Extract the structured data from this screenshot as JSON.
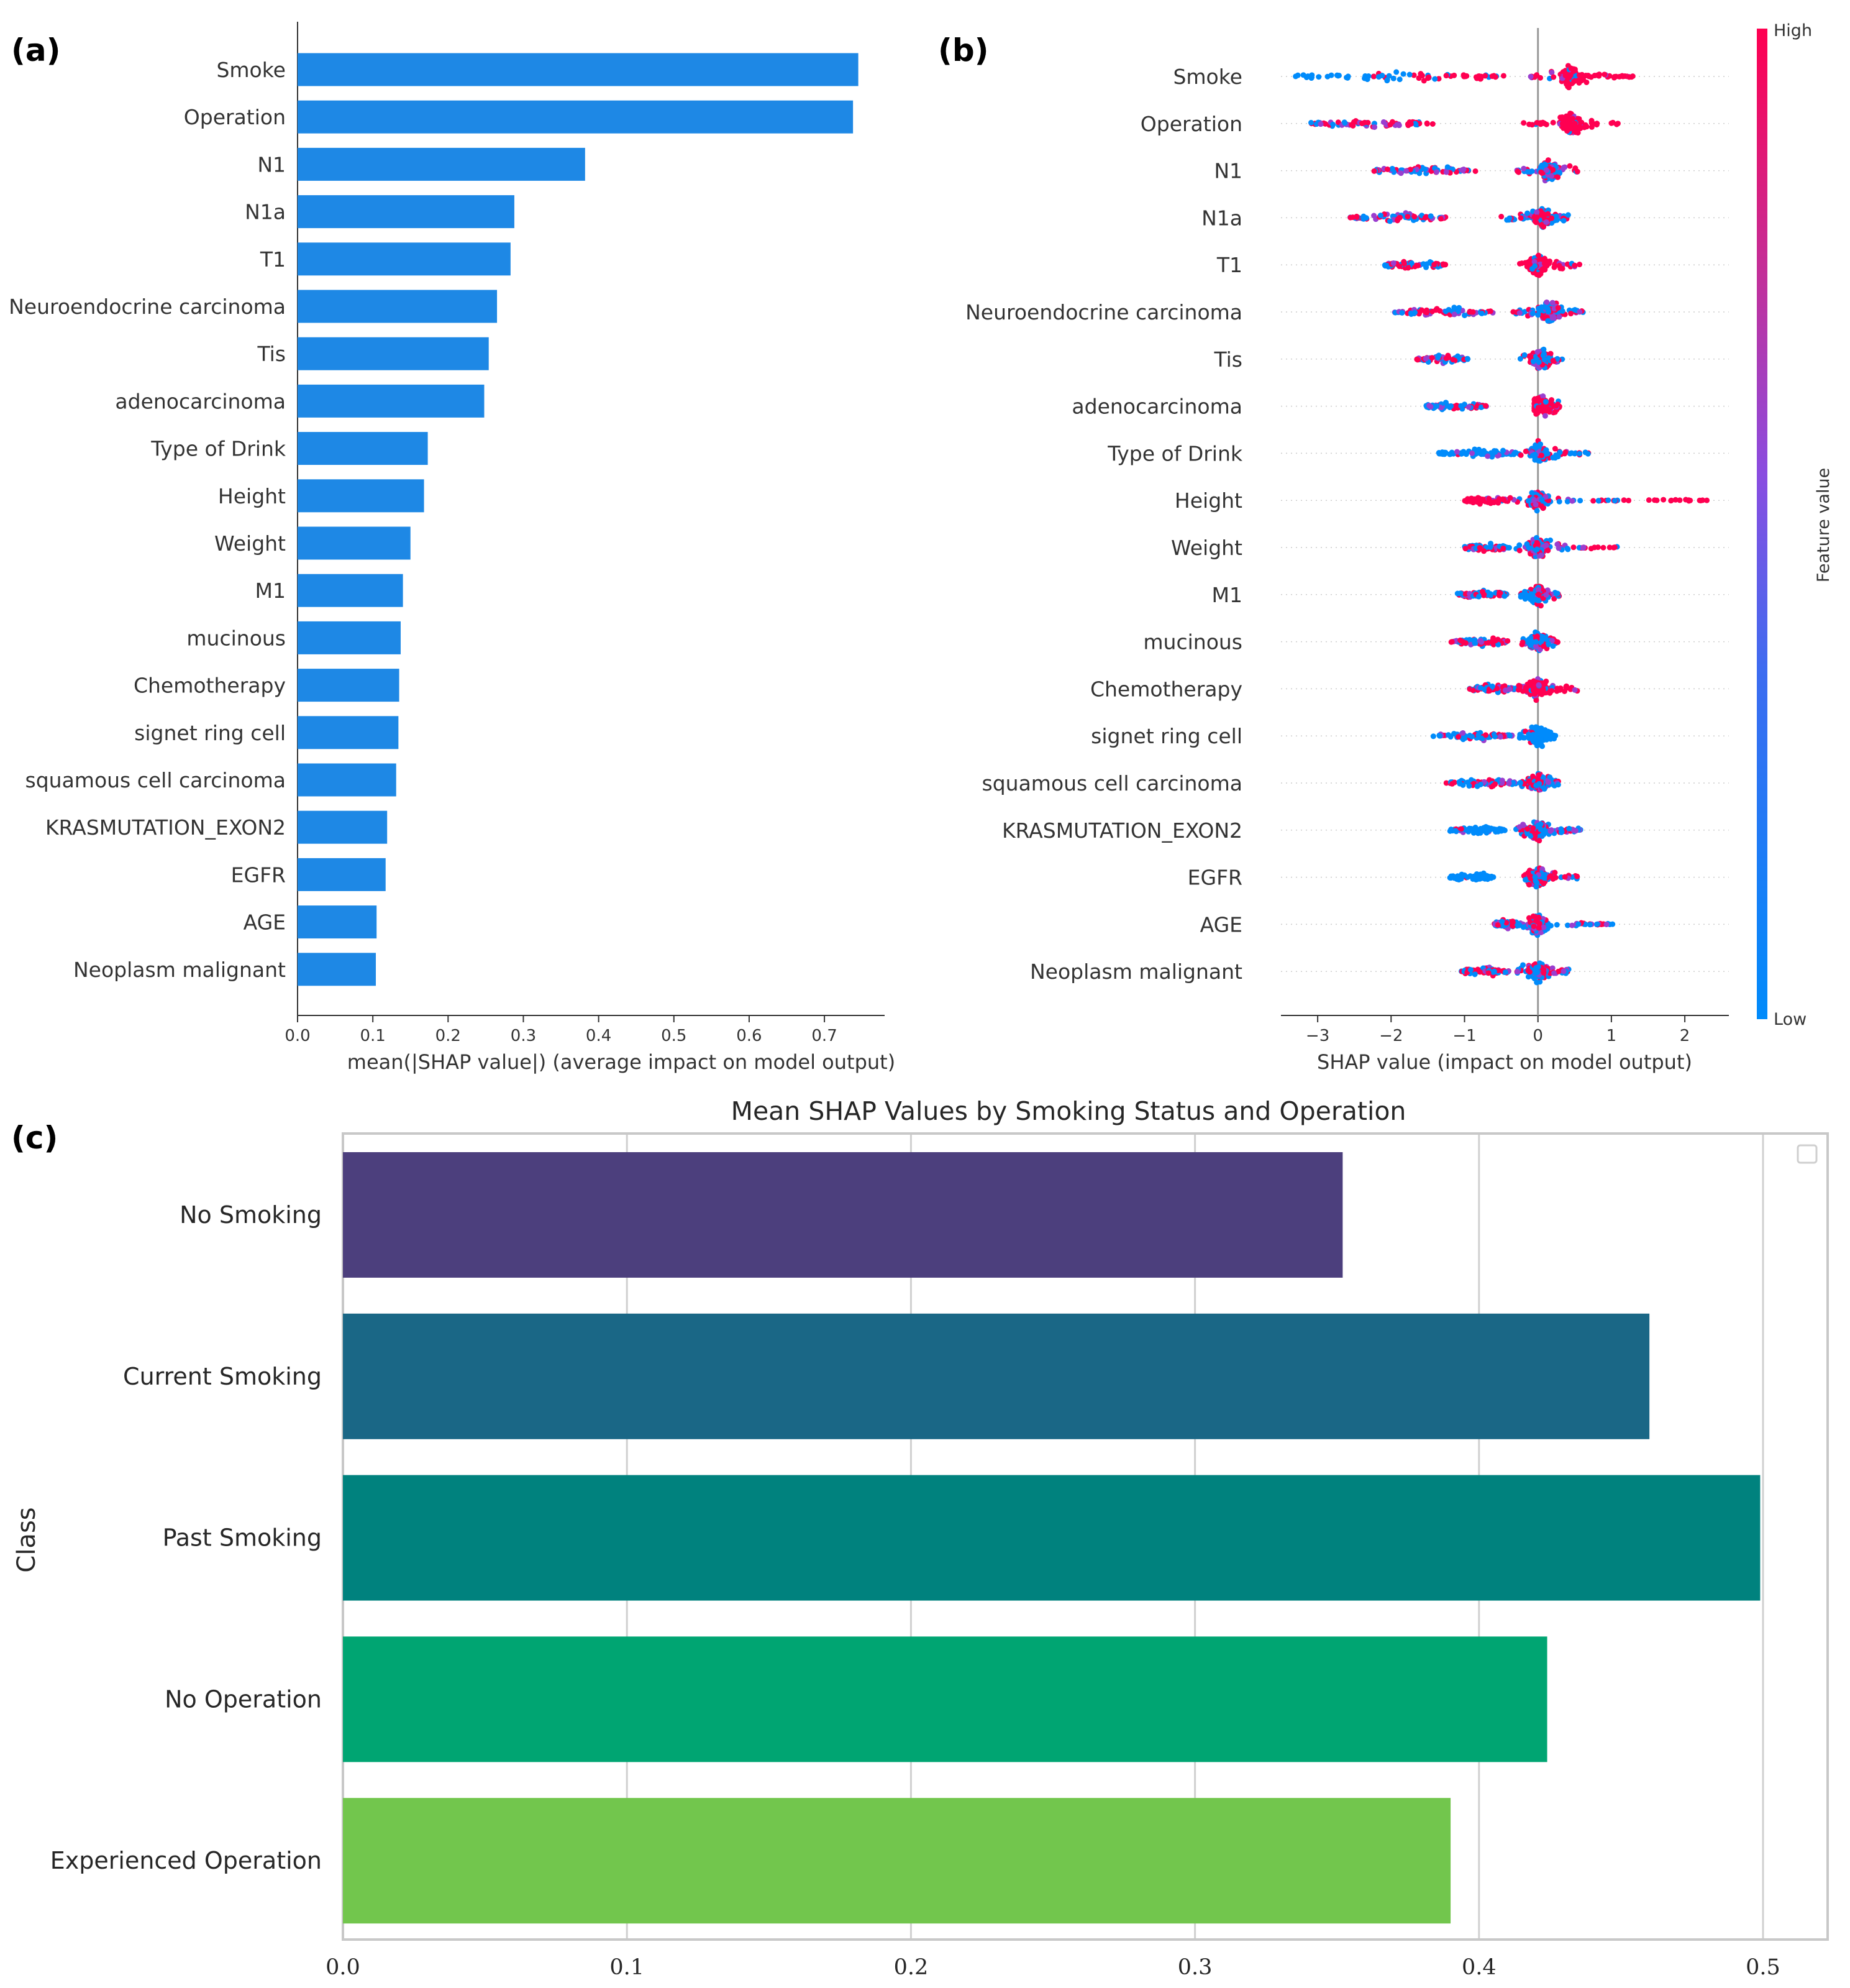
{
  "panel_labels": {
    "a": "(a)",
    "b": "(b)",
    "c": "(c)"
  },
  "colors": {
    "bar_a": "#1e88e5",
    "shap_low": "#008bfb",
    "shap_high": "#ff0051",
    "axis": "#333333",
    "c_grid": "#d0d0d0",
    "c_frame": "#c8c8c8"
  },
  "chart_data": [
    {
      "id": "a",
      "type": "bar",
      "orientation": "horizontal",
      "categories": [
        "Smoke",
        "Operation",
        "N1",
        "N1a",
        "T1",
        "Neuroendocrine carcinoma",
        "Tis",
        "adenocarcinoma",
        "Type of Drink",
        "Height",
        "Weight",
        "M1",
        "mucinous",
        "Chemotherapy",
        "signet ring cell",
        "squamous cell carcinoma",
        "KRASMUTATION_EXON2",
        "EGFR",
        "AGE",
        "Neoplasm malignant"
      ],
      "values": [
        0.745,
        0.738,
        0.382,
        0.288,
        0.283,
        0.265,
        0.254,
        0.248,
        0.173,
        0.168,
        0.15,
        0.14,
        0.137,
        0.135,
        0.134,
        0.131,
        0.119,
        0.117,
        0.105,
        0.104
      ],
      "xlabel": "mean(|SHAP value|) (average impact on model output)",
      "xticks": [
        0.0,
        0.1,
        0.2,
        0.3,
        0.4,
        0.5,
        0.6,
        0.7
      ],
      "xtick_labels": [
        "0.0",
        "0.1",
        "0.2",
        "0.3",
        "0.4",
        "0.5",
        "0.6",
        "0.7"
      ],
      "xlim": [
        0,
        0.78
      ]
    },
    {
      "id": "b",
      "type": "scatter",
      "subtype": "beeswarm",
      "categories": [
        "Smoke",
        "Operation",
        "N1",
        "N1a",
        "T1",
        "Neuroendocrine carcinoma",
        "Tis",
        "adenocarcinoma",
        "Type of Drink",
        "Height",
        "Weight",
        "M1",
        "mucinous",
        "Chemotherapy",
        "signet ring cell",
        "squamous cell carcinoma",
        "KRASMUTATION_EXON2",
        "EGFR",
        "AGE",
        "Neoplasm malignant"
      ],
      "ranges": [
        {
          "left": [
            -3.3,
            -0.45
          ],
          "right": [
            -0.1,
            1.3
          ],
          "center": 0.45,
          "left_color": "low_to_high",
          "right_color": "high"
        },
        {
          "left": [
            -3.1,
            -1.4
          ],
          "right": [
            -0.2,
            1.1
          ],
          "center": 0.45,
          "left_color": "mixed",
          "right_color": "high"
        },
        {
          "left": [
            -2.25,
            -0.85
          ],
          "right": [
            -0.3,
            0.55
          ],
          "center": 0.15,
          "left_color": "mixed",
          "right_color": "mixed"
        },
        {
          "left": [
            -2.6,
            -1.25
          ],
          "right": [
            -0.55,
            0.45
          ],
          "center": 0.05,
          "left_color": "mixed",
          "right_color": "mixed"
        },
        {
          "left": [
            -2.1,
            -1.25
          ],
          "right": [
            -0.25,
            0.65
          ],
          "center": 0.0,
          "left_color": "mixed",
          "right_color": "high"
        },
        {
          "left": [
            -1.95,
            -0.6
          ],
          "right": [
            -0.35,
            0.65
          ],
          "center": 0.15,
          "left_color": "mixed",
          "right_color": "mixed"
        },
        {
          "left": [
            -1.65,
            -0.95
          ],
          "right": [
            -0.25,
            0.35
          ],
          "center": 0.05,
          "left_color": "mixed",
          "right_color": "mixed"
        },
        {
          "left": [
            -1.55,
            -0.7
          ],
          "right": [
            -0.05,
            0.3
          ],
          "center": 0.05,
          "left_color": "mixed",
          "right_color": "high"
        },
        {
          "left": [
            -1.35,
            -0.25
          ],
          "right": [
            -0.25,
            0.7
          ],
          "center": 0.0,
          "left_color": "low",
          "right_color": "mixed"
        },
        {
          "left": [
            -1.0,
            -0.4
          ],
          "right": [
            -0.4,
            2.3
          ],
          "center": 0.0,
          "left_color": "high",
          "right_color": "mixed_high_tail"
        },
        {
          "left": [
            -1.0,
            -0.4
          ],
          "right": [
            -0.4,
            1.1
          ],
          "center": 0.0,
          "left_color": "mixed",
          "right_color": "mixed"
        },
        {
          "left": [
            -1.1,
            -0.4
          ],
          "right": [
            -0.25,
            0.3
          ],
          "center": 0.0,
          "left_color": "mixed",
          "right_color": "mixed"
        },
        {
          "left": [
            -1.2,
            -0.4
          ],
          "right": [
            -0.25,
            0.3
          ],
          "center": 0.0,
          "left_color": "mixed",
          "right_color": "mixed"
        },
        {
          "left": [
            -0.95,
            -0.3
          ],
          "right": [
            -0.3,
            0.55
          ],
          "center": 0.0,
          "left_color": "mixed",
          "right_color": "high"
        },
        {
          "left": [
            -1.45,
            -0.35
          ],
          "right": [
            -0.25,
            0.25
          ],
          "center": 0.0,
          "left_color": "mixed",
          "right_color": "low"
        },
        {
          "left": [
            -1.25,
            -0.3
          ],
          "right": [
            -0.25,
            0.3
          ],
          "center": 0.0,
          "left_color": "mixed",
          "right_color": "mixed"
        },
        {
          "left": [
            -1.2,
            -0.45
          ],
          "right": [
            -0.3,
            0.6
          ],
          "center": 0.0,
          "left_color": "low",
          "right_color": "mixed"
        },
        {
          "left": [
            -1.2,
            -0.6
          ],
          "right": [
            -0.2,
            0.55
          ],
          "center": 0.0,
          "left_color": "low",
          "right_color": "mixed"
        },
        {
          "left": [
            -0.6,
            -0.2
          ],
          "right": [
            -0.2,
            1.1
          ],
          "center": 0.0,
          "left_color": "mixed",
          "right_color": "mixed"
        },
        {
          "left": [
            -1.05,
            -0.4
          ],
          "right": [
            -0.3,
            0.45
          ],
          "center": 0.0,
          "left_color": "mixed",
          "right_color": "mixed"
        }
      ],
      "xlabel": "SHAP value (impact on model output)",
      "xticks": [
        -3,
        -2,
        -1,
        0,
        1,
        2
      ],
      "xtick_labels": [
        "−3",
        "−2",
        "−1",
        "0",
        "1",
        "2"
      ],
      "xlim": [
        -3.5,
        2.6
      ],
      "colorbar": {
        "high_label": "High",
        "low_label": "Low",
        "title": "Feature value"
      }
    },
    {
      "id": "c",
      "type": "bar",
      "orientation": "horizontal",
      "title": "Mean SHAP Values by Smoking Status and Operation",
      "ylabel": "Class",
      "categories": [
        "No Smoking",
        "Current Smoking",
        "Past Smoking",
        "No Operation",
        "Experienced Operation"
      ],
      "values": [
        0.352,
        0.46,
        0.499,
        0.424,
        0.39
      ],
      "bar_colors": [
        "#4c3f7d",
        "#1a6786",
        "#00827e",
        "#00a572",
        "#72c64d"
      ],
      "xticks": [
        0.0,
        0.1,
        0.2,
        0.3,
        0.4,
        0.5
      ],
      "xtick_labels": [
        "0.0",
        "0.1",
        "0.2",
        "0.3",
        "0.4",
        "0.5"
      ],
      "xlim": [
        0,
        0.525
      ]
    }
  ]
}
